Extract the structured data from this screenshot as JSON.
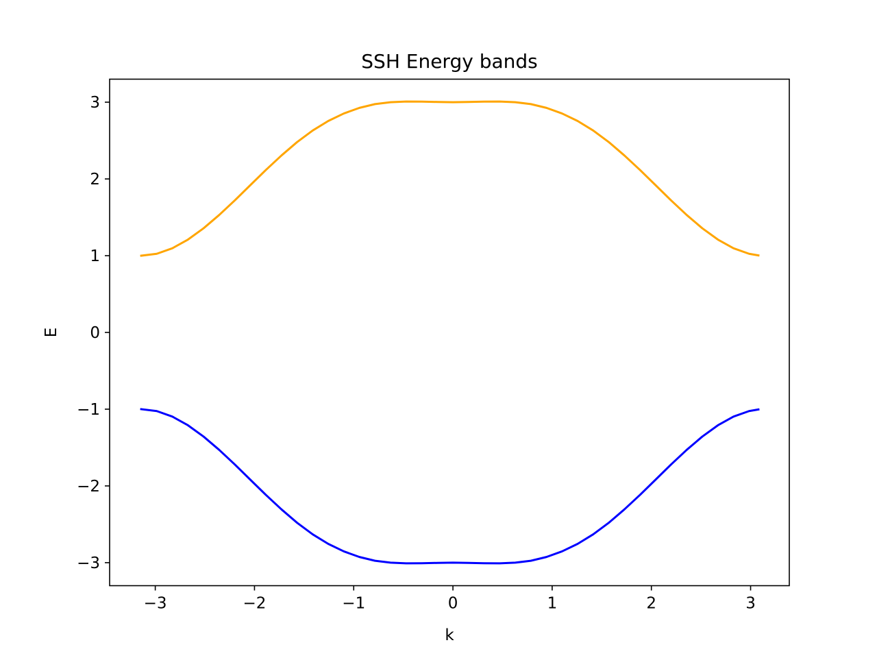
{
  "chart_data": {
    "type": "line",
    "title": "SSH Energy bands",
    "xlabel": "k",
    "ylabel": "E",
    "xlim": [
      -3.46,
      3.39
    ],
    "ylim": [
      -3.3,
      3.3
    ],
    "grid": false,
    "x_ticks": [
      -3,
      -2,
      -1,
      0,
      1,
      2,
      3
    ],
    "x_tick_labels": [
      "−3",
      "−2",
      "−1",
      "0",
      "1",
      "2",
      "3"
    ],
    "y_ticks": [
      3,
      2,
      1,
      0,
      -1,
      -2,
      -3
    ],
    "y_tick_labels": [
      "3",
      "2",
      "1",
      "0",
      "−1",
      "−2",
      "−3"
    ],
    "x": [
      -3.1416,
      -2.9846,
      -2.8274,
      -2.6704,
      -2.5133,
      -2.3562,
      -2.1991,
      -2.042,
      -1.885,
      -1.7279,
      -1.5708,
      -1.4137,
      -1.2566,
      -1.0996,
      -0.9425,
      -0.7854,
      -0.6283,
      -0.4712,
      -0.3142,
      -0.1571,
      0.0,
      0.1571,
      0.3142,
      0.4712,
      0.6283,
      0.7854,
      0.9425,
      1.0996,
      1.2566,
      1.4137,
      1.5708,
      1.7279,
      1.885,
      2.042,
      2.1991,
      2.3562,
      2.5133,
      2.6704,
      2.8274,
      2.9846,
      3.0788
    ],
    "series": [
      {
        "color": "#ffa500",
        "values": [
          1.0,
          1.025,
          1.097,
          1.21,
          1.357,
          1.53,
          1.72,
          1.919,
          2.117,
          2.306,
          2.48,
          2.631,
          2.755,
          2.853,
          2.926,
          2.975,
          3.0,
          3.009,
          3.008,
          3.003,
          3.0,
          3.003,
          3.008,
          3.009,
          3.0,
          2.975,
          2.926,
          2.853,
          2.755,
          2.631,
          2.48,
          2.306,
          2.117,
          1.919,
          1.72,
          1.53,
          1.357,
          1.21,
          1.097,
          1.025,
          1.004
        ]
      },
      {
        "color": "#0000ff",
        "values": [
          -1.0,
          -1.025,
          -1.097,
          -1.21,
          -1.357,
          -1.53,
          -1.72,
          -1.919,
          -2.117,
          -2.306,
          -2.48,
          -2.631,
          -2.755,
          -2.853,
          -2.926,
          -2.975,
          -3.0,
          -3.009,
          -3.008,
          -3.003,
          -3.0,
          -3.003,
          -3.008,
          -3.009,
          -3.0,
          -2.975,
          -2.926,
          -2.853,
          -2.755,
          -2.631,
          -2.48,
          -2.306,
          -2.117,
          -1.919,
          -1.72,
          -1.53,
          -1.357,
          -1.21,
          -1.097,
          -1.025,
          -1.004
        ]
      }
    ]
  }
}
